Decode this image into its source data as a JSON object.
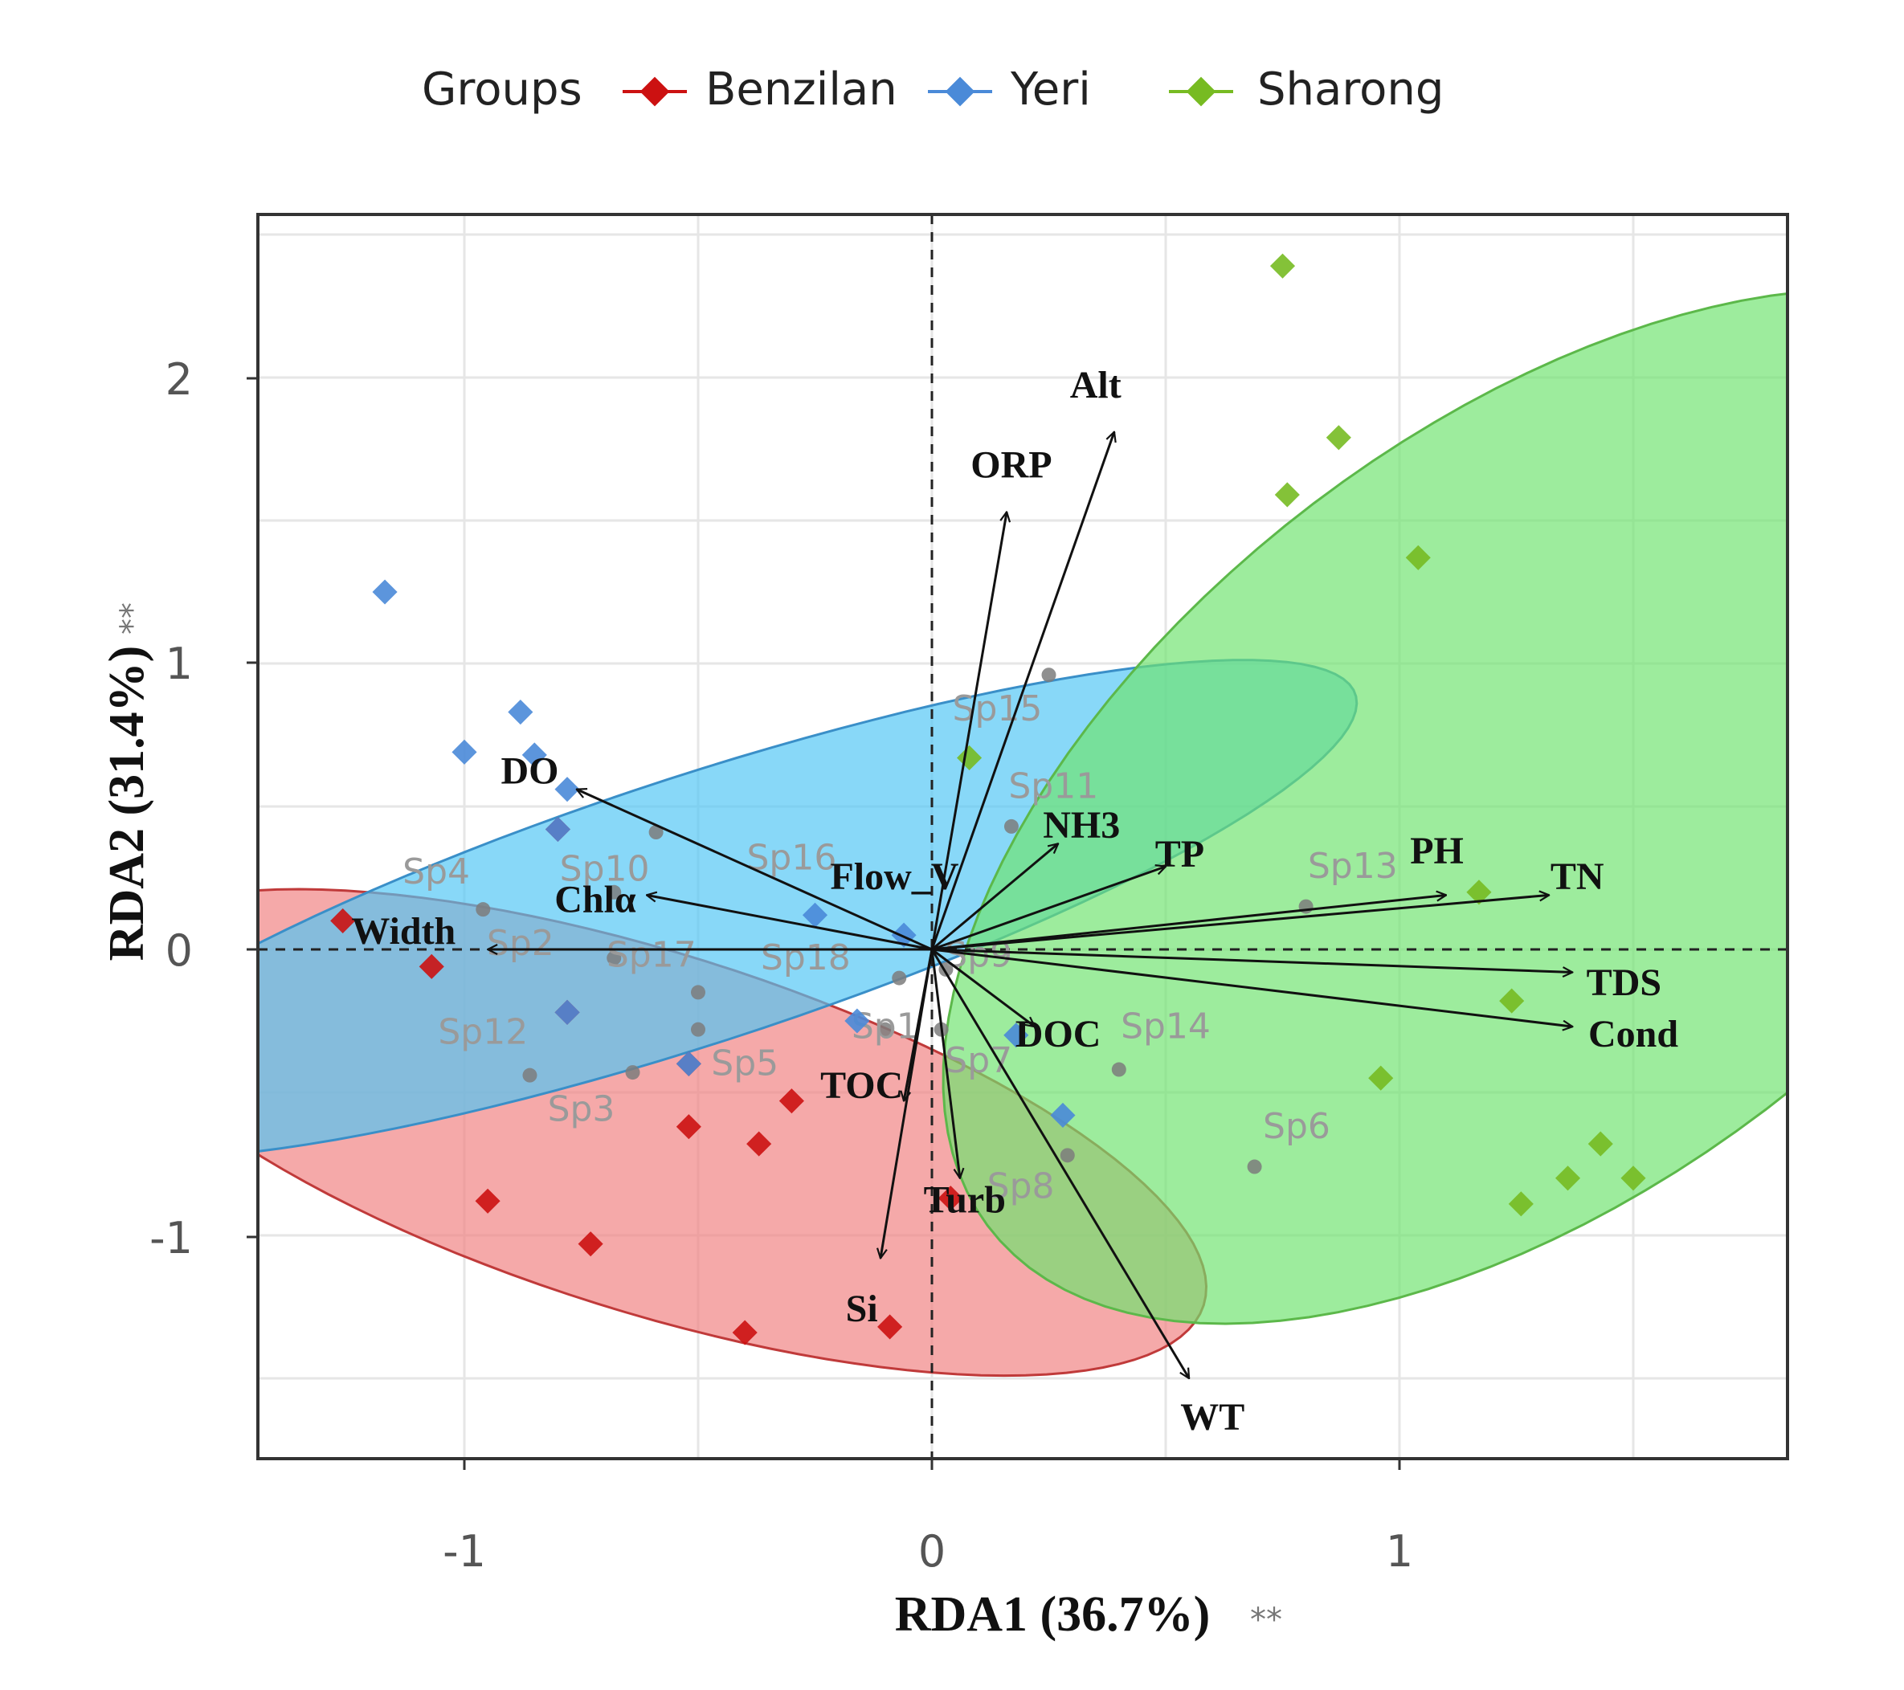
{
  "chart_data": {
    "type": "scatter",
    "subtype": "rda-biplot",
    "xlabel": "RDA1 (36.7%)",
    "xlabel_sig": "**",
    "ylabel": "RDA2 (31.4%)",
    "ylabel_sig": "**",
    "xlim": [
      -1.42,
      1.83
    ],
    "ylim": [
      -1.77,
      2.57
    ],
    "x_ticks": [
      -1,
      0,
      1
    ],
    "y_ticks": [
      -1,
      0,
      1,
      2
    ],
    "tick_labels_x": [
      "-1",
      "0",
      "1"
    ],
    "tick_labels_y": [
      "-1",
      "0",
      "1",
      "2"
    ],
    "grid": true,
    "legend": {
      "title": "Groups",
      "position": "top",
      "entries": [
        {
          "name": "Benzilan",
          "color": "#cc1111"
        },
        {
          "name": "Yeri",
          "color": "#4a8ad8"
        },
        {
          "name": "Sharong",
          "color": "#77bb22"
        }
      ]
    },
    "groups": [
      {
        "name": "Benzilan",
        "color": "#cc1111",
        "fill": "#f08080",
        "stroke": "#c03a3a",
        "ellipse": {
          "cx": -0.6,
          "cy": -0.64,
          "rx": 1.34,
          "ry": 0.58,
          "angle_deg": -31
        },
        "points": [
          [
            -1.26,
            0.1
          ],
          [
            -1.07,
            -0.06
          ],
          [
            -0.95,
            -0.88
          ],
          [
            -0.73,
            -1.03
          ],
          [
            -0.52,
            -0.62
          ],
          [
            -0.37,
            -0.68
          ],
          [
            -0.4,
            -1.34
          ],
          [
            -0.3,
            -0.53
          ],
          [
            -0.09,
            -1.32
          ],
          [
            0.04,
            -0.87
          ],
          [
            -0.52,
            -0.4
          ],
          [
            -0.78,
            -0.22
          ],
          [
            -0.8,
            0.42
          ]
        ]
      },
      {
        "name": "Yeri",
        "color": "#4a8ad8",
        "fill": "#4fc6f4",
        "stroke": "#3a8fc8",
        "ellipse": {
          "cx": -0.5,
          "cy": 0.14,
          "rx": 1.6,
          "ry": 0.43,
          "angle_deg": 29.5
        },
        "points": [
          [
            -1.17,
            1.25
          ],
          [
            -0.88,
            0.83
          ],
          [
            -1.0,
            0.69
          ],
          [
            -0.85,
            0.68
          ],
          [
            -0.78,
            0.56
          ],
          [
            -0.8,
            0.42
          ],
          [
            -0.25,
            0.12
          ],
          [
            -0.16,
            -0.25
          ],
          [
            -0.06,
            0.05
          ],
          [
            0.18,
            -0.3
          ],
          [
            0.28,
            -0.58
          ],
          [
            -0.52,
            -0.4
          ],
          [
            -0.78,
            -0.22
          ]
        ]
      },
      {
        "name": "Sharong",
        "color": "#77bb22",
        "fill": "#6ee36e",
        "stroke": "#5cb84a",
        "ellipse": {
          "cx": 1.3,
          "cy": 0.5,
          "rx": 1.98,
          "ry": 0.99,
          "angle_deg": 62
        },
        "points": [
          [
            0.75,
            2.39
          ],
          [
            0.87,
            1.79
          ],
          [
            0.76,
            1.59
          ],
          [
            1.04,
            1.37
          ],
          [
            0.08,
            0.67
          ],
          [
            1.17,
            0.2
          ],
          [
            1.24,
            -0.18
          ],
          [
            0.96,
            -0.45
          ],
          [
            1.43,
            -0.68
          ],
          [
            1.36,
            -0.8
          ],
          [
            1.5,
            -0.8
          ],
          [
            1.26,
            -0.89
          ]
        ]
      }
    ],
    "species": [
      {
        "label": "Sp15",
        "x": 0.25,
        "y": 0.96,
        "lx": 0.14,
        "ly": 0.8
      },
      {
        "label": "Sp11",
        "x": 0.17,
        "y": 0.43,
        "lx": 0.26,
        "ly": 0.53
      },
      {
        "label": "Sp16",
        "x": -0.59,
        "y": 0.41,
        "lx": -0.3,
        "ly": 0.28
      },
      {
        "label": "Sp13",
        "x": 0.8,
        "y": 0.15,
        "lx": 0.9,
        "ly": 0.25
      },
      {
        "label": "Sp4",
        "x": -0.96,
        "y": 0.14,
        "lx": -1.06,
        "ly": 0.23
      },
      {
        "label": "Sp10",
        "x": -0.68,
        "y": 0.2,
        "lx": -0.7,
        "ly": 0.24
      },
      {
        "label": "Sp2",
        "x": -0.68,
        "y": -0.03,
        "lx": -0.88,
        "ly": -0.02
      },
      {
        "label": "Sp17",
        "x": -0.5,
        "y": -0.15,
        "lx": -0.6,
        "ly": -0.06
      },
      {
        "label": "Sp18",
        "x": -0.07,
        "y": -0.1,
        "lx": -0.27,
        "ly": -0.07
      },
      {
        "label": "Sp9",
        "x": 0.03,
        "y": -0.07,
        "lx": 0.1,
        "ly": -0.06
      },
      {
        "label": "Sp12",
        "x": -0.86,
        "y": -0.44,
        "lx": -0.96,
        "ly": -0.33
      },
      {
        "label": "Sp5",
        "x": -0.64,
        "y": -0.43,
        "lx": -0.4,
        "ly": -0.44
      },
      {
        "label": "Sp1",
        "x": -0.1,
        "y": -0.28,
        "lx": -0.1,
        "ly": -0.31
      },
      {
        "label": "Sp7",
        "x": 0.02,
        "y": -0.28,
        "lx": 0.1,
        "ly": -0.43
      },
      {
        "label": "Sp3",
        "x": -0.5,
        "y": -0.28,
        "lx": -0.75,
        "ly": -0.6
      },
      {
        "label": "Sp14",
        "x": 0.4,
        "y": -0.42,
        "lx": 0.5,
        "ly": -0.31
      },
      {
        "label": "Sp6",
        "x": 0.69,
        "y": -0.76,
        "lx": 0.78,
        "ly": -0.66
      },
      {
        "label": "Sp8",
        "x": 0.29,
        "y": -0.72,
        "lx": 0.19,
        "ly": -0.87
      }
    ],
    "env_vectors": [
      {
        "label": "Alt",
        "x": 0.39,
        "y": 1.81,
        "lx": 0.35,
        "ly": 1.93
      },
      {
        "label": "ORP",
        "x": 0.16,
        "y": 1.53,
        "lx": 0.17,
        "ly": 1.65
      },
      {
        "label": "DO",
        "x": -0.76,
        "y": 0.56,
        "lx": -0.86,
        "ly": 0.58
      },
      {
        "label": "Chlα",
        "x": -0.61,
        "y": 0.19,
        "lx": -0.72,
        "ly": 0.13
      },
      {
        "label": "Width",
        "x": -0.95,
        "y": 0.0,
        "lx": -1.13,
        "ly": 0.02
      },
      {
        "label": "Flow_V",
        "x": 0.0,
        "y": 0.0,
        "lx": -0.08,
        "ly": 0.21
      },
      {
        "label": "NH3",
        "x": 0.27,
        "y": 0.37,
        "lx": 0.32,
        "ly": 0.39
      },
      {
        "label": "TP",
        "x": 0.5,
        "y": 0.29,
        "lx": 0.53,
        "ly": 0.29
      },
      {
        "label": "PH",
        "x": 1.1,
        "y": 0.19,
        "lx": 1.08,
        "ly": 0.3
      },
      {
        "label": "TN",
        "x": 1.32,
        "y": 0.19,
        "lx": 1.38,
        "ly": 0.21
      },
      {
        "label": "TDS",
        "x": 1.37,
        "y": -0.08,
        "lx": 1.48,
        "ly": -0.16
      },
      {
        "label": "Cond",
        "x": 1.37,
        "y": -0.27,
        "lx": 1.5,
        "ly": -0.34
      },
      {
        "label": "DOC",
        "x": 0.22,
        "y": -0.27,
        "lx": 0.27,
        "ly": -0.34
      },
      {
        "label": "TOC",
        "x": -0.06,
        "y": -0.53,
        "lx": -0.15,
        "ly": -0.52
      },
      {
        "label": "Turb",
        "x": 0.06,
        "y": -0.8,
        "lx": 0.07,
        "ly": -0.92
      },
      {
        "label": "Si",
        "x": -0.11,
        "y": -1.08,
        "lx": -0.15,
        "ly": -1.3
      },
      {
        "label": "WT",
        "x": 0.55,
        "y": -1.5,
        "lx": 0.6,
        "ly": -1.68
      }
    ]
  }
}
